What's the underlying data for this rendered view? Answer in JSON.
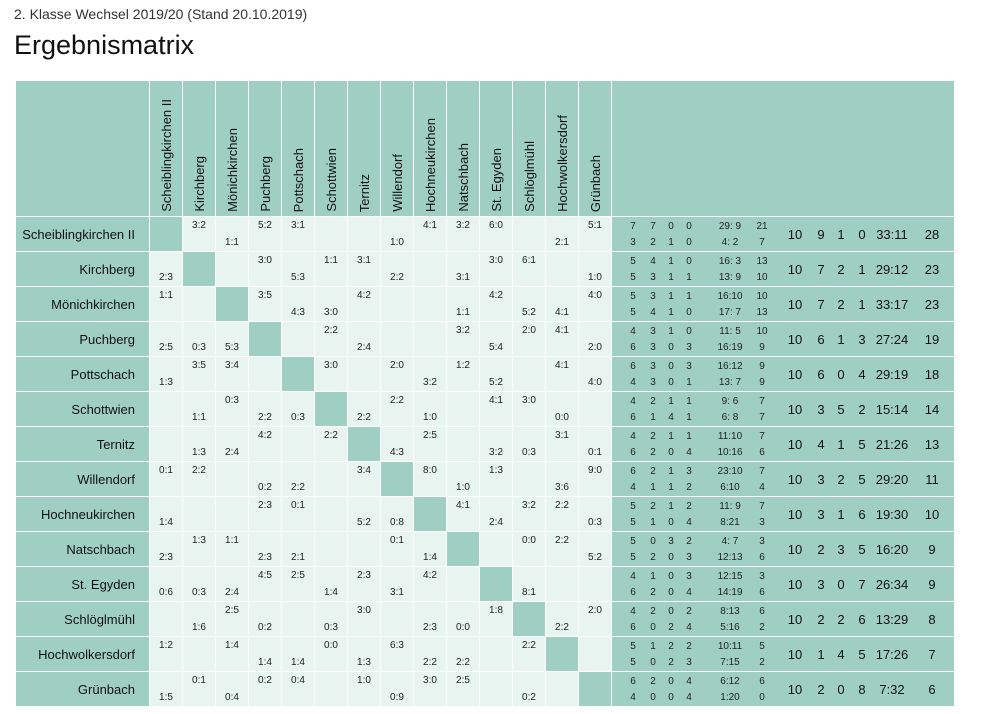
{
  "header": {
    "subtitle": "2. Klasse Wechsel 2019/20 (Stand 20.10.2019)",
    "title": "Ergebnismatrix"
  },
  "teams": [
    "Scheiblingkirchen II",
    "Kirchberg",
    "Mönichkirchen",
    "Puchberg",
    "Pottschach",
    "Schottwien",
    "Ternitz",
    "Willendorf",
    "Hochneukirchen",
    "Natschbach",
    "St. Egyden",
    "Schlöglmühl",
    "Hochwolkersdorf",
    "Grünbach"
  ],
  "rows": [
    {
      "team": "Scheiblingkirchen II",
      "cells": [
        null,
        {
          "h": "3:2",
          "a": ""
        },
        {
          "h": "",
          "a": "1:1"
        },
        {
          "h": "5:2",
          "a": ""
        },
        {
          "h": "3:1",
          "a": ""
        },
        {
          "h": "",
          "a": ""
        },
        {
          "h": "",
          "a": ""
        },
        {
          "h": "",
          "a": "1:0"
        },
        {
          "h": "4:1",
          "a": ""
        },
        {
          "h": "3:2",
          "a": ""
        },
        {
          "h": "6:0",
          "a": ""
        },
        {
          "h": "",
          "a": ""
        },
        {
          "h": "",
          "a": "2:1"
        },
        {
          "h": "5:1",
          "a": ""
        }
      ],
      "home": [
        "7",
        "7",
        "0",
        "0",
        "29: 9",
        "21"
      ],
      "away": [
        "3",
        "2",
        "1",
        "0",
        "4: 2",
        "7"
      ],
      "total": [
        "10",
        "9",
        "1",
        "0",
        "33:11",
        "28"
      ]
    },
    {
      "team": "Kirchberg",
      "cells": [
        {
          "h": "",
          "a": "2:3"
        },
        null,
        {
          "h": "",
          "a": ""
        },
        {
          "h": "3:0",
          "a": ""
        },
        {
          "h": "",
          "a": "5:3"
        },
        {
          "h": "1:1",
          "a": ""
        },
        {
          "h": "3:1",
          "a": ""
        },
        {
          "h": "",
          "a": "2:2"
        },
        {
          "h": "",
          "a": ""
        },
        {
          "h": "",
          "a": "3:1"
        },
        {
          "h": "3:0",
          "a": ""
        },
        {
          "h": "6:1",
          "a": ""
        },
        {
          "h": "",
          "a": ""
        },
        {
          "h": "",
          "a": "1:0"
        }
      ],
      "home": [
        "5",
        "4",
        "1",
        "0",
        "16: 3",
        "13"
      ],
      "away": [
        "5",
        "3",
        "1",
        "1",
        "13: 9",
        "10"
      ],
      "total": [
        "10",
        "7",
        "2",
        "1",
        "29:12",
        "23"
      ]
    },
    {
      "team": "Mönichkirchen",
      "cells": [
        {
          "h": "1:1",
          "a": ""
        },
        {
          "h": "",
          "a": ""
        },
        null,
        {
          "h": "3:5",
          "a": ""
        },
        {
          "h": "",
          "a": "4:3"
        },
        {
          "h": "",
          "a": "3:0"
        },
        {
          "h": "4:2",
          "a": ""
        },
        {
          "h": "",
          "a": ""
        },
        {
          "h": "",
          "a": ""
        },
        {
          "h": "",
          "a": "1:1"
        },
        {
          "h": "4:2",
          "a": ""
        },
        {
          "h": "",
          "a": "5:2"
        },
        {
          "h": "",
          "a": "4:1"
        },
        {
          "h": "4:0",
          "a": ""
        }
      ],
      "home": [
        "5",
        "3",
        "1",
        "1",
        "16:10",
        "10"
      ],
      "away": [
        "5",
        "4",
        "1",
        "0",
        "17: 7",
        "13"
      ],
      "total": [
        "10",
        "7",
        "2",
        "1",
        "33:17",
        "23"
      ]
    },
    {
      "team": "Puchberg",
      "cells": [
        {
          "h": "",
          "a": "2:5"
        },
        {
          "h": "",
          "a": "0:3"
        },
        {
          "h": "",
          "a": "5:3"
        },
        null,
        {
          "h": "",
          "a": ""
        },
        {
          "h": "2:2",
          "a": ""
        },
        {
          "h": "",
          "a": "2:4"
        },
        {
          "h": "",
          "a": ""
        },
        {
          "h": "",
          "a": ""
        },
        {
          "h": "3:2",
          "a": ""
        },
        {
          "h": "",
          "a": "5:4"
        },
        {
          "h": "2:0",
          "a": ""
        },
        {
          "h": "4:1",
          "a": ""
        },
        {
          "h": "",
          "a": "2:0"
        }
      ],
      "home": [
        "4",
        "3",
        "1",
        "0",
        "11: 5",
        "10"
      ],
      "away": [
        "6",
        "3",
        "0",
        "3",
        "16:19",
        "9"
      ],
      "total": [
        "10",
        "6",
        "1",
        "3",
        "27:24",
        "19"
      ]
    },
    {
      "team": "Pottschach",
      "cells": [
        {
          "h": "",
          "a": "1:3"
        },
        {
          "h": "3:5",
          "a": ""
        },
        {
          "h": "3:4",
          "a": ""
        },
        {
          "h": "",
          "a": ""
        },
        null,
        {
          "h": "3:0",
          "a": ""
        },
        {
          "h": "",
          "a": ""
        },
        {
          "h": "2:0",
          "a": ""
        },
        {
          "h": "",
          "a": "3:2"
        },
        {
          "h": "1:2",
          "a": ""
        },
        {
          "h": "",
          "a": "5:2"
        },
        {
          "h": "",
          "a": ""
        },
        {
          "h": "4:1",
          "a": ""
        },
        {
          "h": "",
          "a": "4:0"
        }
      ],
      "home": [
        "6",
        "3",
        "0",
        "3",
        "16:12",
        "9"
      ],
      "away": [
        "4",
        "3",
        "0",
        "1",
        "13: 7",
        "9"
      ],
      "total": [
        "10",
        "6",
        "0",
        "4",
        "29:19",
        "18"
      ]
    },
    {
      "team": "Schottwien",
      "cells": [
        {
          "h": "",
          "a": ""
        },
        {
          "h": "",
          "a": "1:1"
        },
        {
          "h": "0:3",
          "a": ""
        },
        {
          "h": "",
          "a": "2:2"
        },
        {
          "h": "",
          "a": "0:3"
        },
        null,
        {
          "h": "",
          "a": "2:2"
        },
        {
          "h": "2:2",
          "a": ""
        },
        {
          "h": "",
          "a": "1:0"
        },
        {
          "h": "",
          "a": ""
        },
        {
          "h": "4:1",
          "a": ""
        },
        {
          "h": "3:0",
          "a": ""
        },
        {
          "h": "",
          "a": "0:0"
        },
        {
          "h": "",
          "a": ""
        }
      ],
      "home": [
        "4",
        "2",
        "1",
        "1",
        "9: 6",
        "7"
      ],
      "away": [
        "6",
        "1",
        "4",
        "1",
        "6: 8",
        "7"
      ],
      "total": [
        "10",
        "3",
        "5",
        "2",
        "15:14",
        "14"
      ]
    },
    {
      "team": "Ternitz",
      "cells": [
        {
          "h": "",
          "a": ""
        },
        {
          "h": "",
          "a": "1:3"
        },
        {
          "h": "",
          "a": "2:4"
        },
        {
          "h": "4:2",
          "a": ""
        },
        {
          "h": "",
          "a": ""
        },
        {
          "h": "2:2",
          "a": ""
        },
        null,
        {
          "h": "",
          "a": "4:3"
        },
        {
          "h": "2:5",
          "a": ""
        },
        {
          "h": "",
          "a": ""
        },
        {
          "h": "",
          "a": "3:2"
        },
        {
          "h": "",
          "a": "0:3"
        },
        {
          "h": "3:1",
          "a": ""
        },
        {
          "h": "",
          "a": "0:1"
        }
      ],
      "home": [
        "4",
        "2",
        "1",
        "1",
        "11:10",
        "7"
      ],
      "away": [
        "6",
        "2",
        "0",
        "4",
        "10:16",
        "6"
      ],
      "total": [
        "10",
        "4",
        "1",
        "5",
        "21:26",
        "13"
      ]
    },
    {
      "team": "Willendorf",
      "cells": [
        {
          "h": "0:1",
          "a": ""
        },
        {
          "h": "2:2",
          "a": ""
        },
        {
          "h": "",
          "a": ""
        },
        {
          "h": "",
          "a": "0:2"
        },
        {
          "h": "",
          "a": "2:2"
        },
        {
          "h": "",
          "a": ""
        },
        {
          "h": "3:4",
          "a": ""
        },
        null,
        {
          "h": "8:0",
          "a": ""
        },
        {
          "h": "",
          "a": "1:0"
        },
        {
          "h": "1:3",
          "a": ""
        },
        {
          "h": "",
          "a": ""
        },
        {
          "h": "",
          "a": "3:6"
        },
        {
          "h": "9:0",
          "a": ""
        }
      ],
      "home": [
        "6",
        "2",
        "1",
        "3",
        "23:10",
        "7"
      ],
      "away": [
        "4",
        "1",
        "1",
        "2",
        "6:10",
        "4"
      ],
      "total": [
        "10",
        "3",
        "2",
        "5",
        "29:20",
        "11"
      ]
    },
    {
      "team": "Hochneukirchen",
      "cells": [
        {
          "h": "",
          "a": "1:4"
        },
        {
          "h": "",
          "a": ""
        },
        {
          "h": "",
          "a": ""
        },
        {
          "h": "2:3",
          "a": ""
        },
        {
          "h": "0:1",
          "a": ""
        },
        {
          "h": "",
          "a": ""
        },
        {
          "h": "",
          "a": "5:2"
        },
        {
          "h": "",
          "a": "0:8"
        },
        null,
        {
          "h": "4:1",
          "a": ""
        },
        {
          "h": "",
          "a": "2:4"
        },
        {
          "h": "3:2",
          "a": ""
        },
        {
          "h": "2:2",
          "a": ""
        },
        {
          "h": "",
          "a": "0:3"
        }
      ],
      "home": [
        "5",
        "2",
        "1",
        "2",
        "11: 9",
        "7"
      ],
      "away": [
        "5",
        "1",
        "0",
        "4",
        "8:21",
        "3"
      ],
      "total": [
        "10",
        "3",
        "1",
        "6",
        "19:30",
        "10"
      ]
    },
    {
      "team": "Natschbach",
      "cells": [
        {
          "h": "",
          "a": "2:3"
        },
        {
          "h": "1:3",
          "a": ""
        },
        {
          "h": "1:1",
          "a": ""
        },
        {
          "h": "",
          "a": "2:3"
        },
        {
          "h": "",
          "a": "2:1"
        },
        {
          "h": "",
          "a": ""
        },
        {
          "h": "",
          "a": ""
        },
        {
          "h": "0:1",
          "a": ""
        },
        {
          "h": "",
          "a": "1:4"
        },
        null,
        {
          "h": "",
          "a": ""
        },
        {
          "h": "0:0",
          "a": ""
        },
        {
          "h": "2:2",
          "a": ""
        },
        {
          "h": "",
          "a": "5:2"
        }
      ],
      "home": [
        "5",
        "0",
        "3",
        "2",
        "4: 7",
        "3"
      ],
      "away": [
        "5",
        "2",
        "0",
        "3",
        "12:13",
        "6"
      ],
      "total": [
        "10",
        "2",
        "3",
        "5",
        "16:20",
        "9"
      ]
    },
    {
      "team": "St. Egyden",
      "cells": [
        {
          "h": "",
          "a": "0:6"
        },
        {
          "h": "",
          "a": "0:3"
        },
        {
          "h": "",
          "a": "2:4"
        },
        {
          "h": "4:5",
          "a": ""
        },
        {
          "h": "2:5",
          "a": ""
        },
        {
          "h": "",
          "a": "1:4"
        },
        {
          "h": "2:3",
          "a": ""
        },
        {
          "h": "",
          "a": "3:1"
        },
        {
          "h": "4:2",
          "a": ""
        },
        {
          "h": "",
          "a": ""
        },
        null,
        {
          "h": "",
          "a": "8:1"
        },
        {
          "h": "",
          "a": ""
        },
        {
          "h": "",
          "a": ""
        }
      ],
      "home": [
        "4",
        "1",
        "0",
        "3",
        "12:15",
        "3"
      ],
      "away": [
        "6",
        "2",
        "0",
        "4",
        "14:19",
        "6"
      ],
      "total": [
        "10",
        "3",
        "0",
        "7",
        "26:34",
        "9"
      ]
    },
    {
      "team": "Schlöglmühl",
      "cells": [
        {
          "h": "",
          "a": ""
        },
        {
          "h": "",
          "a": "1:6"
        },
        {
          "h": "2:5",
          "a": ""
        },
        {
          "h": "",
          "a": "0:2"
        },
        {
          "h": "",
          "a": ""
        },
        {
          "h": "",
          "a": "0:3"
        },
        {
          "h": "3:0",
          "a": ""
        },
        {
          "h": "",
          "a": ""
        },
        {
          "h": "",
          "a": "2:3"
        },
        {
          "h": "",
          "a": "0:0"
        },
        {
          "h": "1:8",
          "a": ""
        },
        null,
        {
          "h": "",
          "a": "2:2"
        },
        {
          "h": "2:0",
          "a": ""
        }
      ],
      "home": [
        "4",
        "2",
        "0",
        "2",
        "8:13",
        "6"
      ],
      "away": [
        "6",
        "0",
        "2",
        "4",
        "5:16",
        "2"
      ],
      "total": [
        "10",
        "2",
        "2",
        "6",
        "13:29",
        "8"
      ]
    },
    {
      "team": "Hochwolkersdorf",
      "cells": [
        {
          "h": "1:2",
          "a": ""
        },
        {
          "h": "",
          "a": ""
        },
        {
          "h": "1:4",
          "a": ""
        },
        {
          "h": "",
          "a": "1:4"
        },
        {
          "h": "",
          "a": "1:4"
        },
        {
          "h": "0:0",
          "a": ""
        },
        {
          "h": "",
          "a": "1:3"
        },
        {
          "h": "6:3",
          "a": ""
        },
        {
          "h": "",
          "a": "2:2"
        },
        {
          "h": "",
          "a": "2:2"
        },
        {
          "h": "",
          "a": ""
        },
        {
          "h": "2:2",
          "a": ""
        },
        null,
        {
          "h": "",
          "a": ""
        }
      ],
      "home": [
        "5",
        "1",
        "2",
        "2",
        "10:11",
        "5"
      ],
      "away": [
        "5",
        "0",
        "2",
        "3",
        "7:15",
        "2"
      ],
      "total": [
        "10",
        "1",
        "4",
        "5",
        "17:26",
        "7"
      ]
    },
    {
      "team": "Grünbach",
      "cells": [
        {
          "h": "",
          "a": "1:5"
        },
        {
          "h": "0:1",
          "a": ""
        },
        {
          "h": "",
          "a": "0:4"
        },
        {
          "h": "0:2",
          "a": ""
        },
        {
          "h": "0:4",
          "a": ""
        },
        {
          "h": "",
          "a": ""
        },
        {
          "h": "1:0",
          "a": ""
        },
        {
          "h": "",
          "a": "0:9"
        },
        {
          "h": "3:0",
          "a": ""
        },
        {
          "h": "2:5",
          "a": ""
        },
        {
          "h": "",
          "a": ""
        },
        {
          "h": "",
          "a": "0:2"
        },
        {
          "h": "",
          "a": ""
        },
        null
      ],
      "home": [
        "6",
        "2",
        "0",
        "4",
        "6:12",
        "6"
      ],
      "away": [
        "4",
        "0",
        "0",
        "4",
        "1:20",
        "0"
      ],
      "total": [
        "10",
        "2",
        "0",
        "8",
        "7:32",
        "6"
      ]
    }
  ]
}
